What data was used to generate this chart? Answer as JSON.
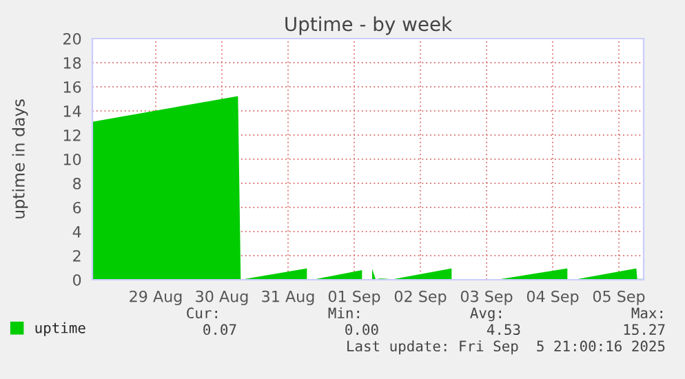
{
  "chart_data": {
    "type": "area",
    "title": "Uptime - by week",
    "ylabel": "uptime in days",
    "x": [
      "2025-08-28T13:00",
      "2025-08-30T17:50",
      "2025-08-30T18:50",
      "2025-08-30T21:10",
      "2025-08-31T18:50",
      "2025-08-31T19:30",
      "2025-08-31T21:40",
      "2025-09-01T14:50",
      "2025-09-01T15:30",
      "2025-09-01T18:30",
      "2025-09-01T19:50",
      "2025-09-01T21:00",
      "2025-09-01T22:30",
      "2025-09-02T02:00",
      "2025-09-02T23:20",
      "2025-09-03T00:00",
      "2025-09-03T15:30",
      "2025-09-04T17:20",
      "2025-09-04T18:00",
      "2025-09-04T20:40",
      "2025-09-05T18:20",
      "2025-09-05T18:40",
      "2025-09-05T21:00"
    ],
    "series": [
      {
        "name": "uptime",
        "color": "#00cc00",
        "values": [
          13.1,
          15.23,
          0,
          0.1,
          0.95,
          null,
          0.05,
          0.8,
          null,
          0.9,
          0,
          0.1,
          0.1,
          0.05,
          0.95,
          null,
          0,
          0.95,
          null,
          0.05,
          0.95,
          0.07,
          0.07
        ]
      }
    ],
    "xlim": [
      "2025-08-28T13:00",
      "2025-09-05T21:00"
    ],
    "xticks": [
      {
        "value": "2025-08-29T12:00",
        "label": "29 Aug"
      },
      {
        "value": "2025-08-30T12:00",
        "label": "30 Aug"
      },
      {
        "value": "2025-08-31T12:00",
        "label": "31 Aug"
      },
      {
        "value": "2025-09-01T12:00",
        "label": "01 Sep"
      },
      {
        "value": "2025-09-02T12:00",
        "label": "02 Sep"
      },
      {
        "value": "2025-09-03T12:00",
        "label": "03 Sep"
      },
      {
        "value": "2025-09-04T12:00",
        "label": "04 Sep"
      },
      {
        "value": "2025-09-05T12:00",
        "label": "05 Sep"
      }
    ],
    "ylim": [
      0,
      20
    ],
    "yticks": [
      0,
      2,
      4,
      6,
      8,
      10,
      12,
      14,
      16,
      18,
      20
    ],
    "grid": true,
    "legend": "bottom left",
    "annotations": [
      "Cur:",
      "Min:",
      "Avg:",
      "Max:",
      "0.07",
      "0.00",
      "4.53",
      "15.27",
      "Last update: Fri Sep  5 21:00:16 2025"
    ]
  }
}
